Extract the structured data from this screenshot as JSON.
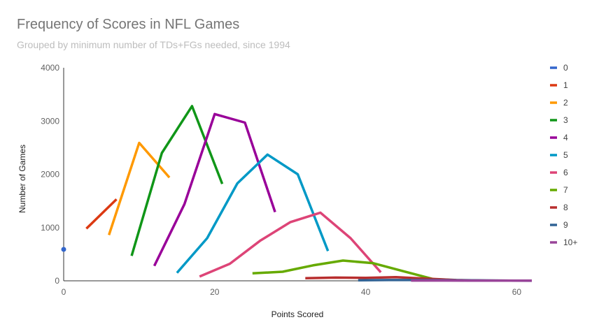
{
  "chart_data": {
    "type": "line",
    "title": "Frequency of Scores in NFL Games",
    "subtitle": "Grouped by minimum number of TDs+FGs needed, since 1994",
    "xlabel": "Points Scored",
    "ylabel": "Number of Games",
    "xlim": [
      0,
      62
    ],
    "ylim": [
      0,
      4000
    ],
    "x_ticks": [
      "0",
      "20",
      "40",
      "60"
    ],
    "y_ticks": [
      "0",
      "1000",
      "2000",
      "3000",
      "4000"
    ],
    "grid": false,
    "legend_position": "right",
    "series": [
      {
        "name": "0",
        "color": "#3366cc",
        "points": [
          [
            0,
            590
          ]
        ]
      },
      {
        "name": "1",
        "color": "#dc3912",
        "points": [
          [
            3,
            980
          ],
          [
            7,
            1530
          ]
        ]
      },
      {
        "name": "2",
        "color": "#ff9900",
        "points": [
          [
            6,
            860
          ],
          [
            10,
            2590
          ],
          [
            14,
            1940
          ]
        ]
      },
      {
        "name": "3",
        "color": "#109618",
        "points": [
          [
            9,
            470
          ],
          [
            13,
            2400
          ],
          [
            17,
            3280
          ],
          [
            21,
            1820
          ]
        ]
      },
      {
        "name": "4",
        "color": "#990099",
        "points": [
          [
            12,
            280
          ],
          [
            16,
            1440
          ],
          [
            20,
            3130
          ],
          [
            24,
            2970
          ],
          [
            28,
            1290
          ]
        ]
      },
      {
        "name": "5",
        "color": "#0099c6",
        "points": [
          [
            15,
            150
          ],
          [
            19,
            800
          ],
          [
            23,
            1830
          ],
          [
            27,
            2370
          ],
          [
            31,
            2000
          ],
          [
            35,
            560
          ]
        ]
      },
      {
        "name": "6",
        "color": "#dd4477",
        "points": [
          [
            18,
            80
          ],
          [
            22,
            320
          ],
          [
            26,
            750
          ],
          [
            30,
            1100
          ],
          [
            34,
            1280
          ],
          [
            38,
            800
          ],
          [
            42,
            160
          ]
        ]
      },
      {
        "name": "7",
        "color": "#66aa00",
        "points": [
          [
            25,
            140
          ],
          [
            29,
            170
          ],
          [
            33,
            290
          ],
          [
            37,
            380
          ],
          [
            41,
            330
          ],
          [
            45,
            180
          ],
          [
            49,
            30
          ],
          [
            53,
            5
          ]
        ]
      },
      {
        "name": "8",
        "color": "#b82e2e",
        "points": [
          [
            32,
            50
          ],
          [
            36,
            60
          ],
          [
            40,
            55
          ],
          [
            44,
            70
          ],
          [
            48,
            40
          ],
          [
            52,
            15
          ],
          [
            56,
            5
          ],
          [
            60,
            2
          ]
        ]
      },
      {
        "name": "9",
        "color": "#316395",
        "points": [
          [
            39,
            10
          ],
          [
            43,
            15
          ],
          [
            47,
            15
          ],
          [
            51,
            12
          ],
          [
            55,
            8
          ],
          [
            59,
            4
          ],
          [
            62,
            1
          ]
        ]
      },
      {
        "name": "10+",
        "color": "#994499",
        "points": [
          [
            46,
            5
          ],
          [
            50,
            5
          ],
          [
            54,
            4
          ],
          [
            58,
            3
          ],
          [
            62,
            2
          ]
        ]
      }
    ]
  }
}
